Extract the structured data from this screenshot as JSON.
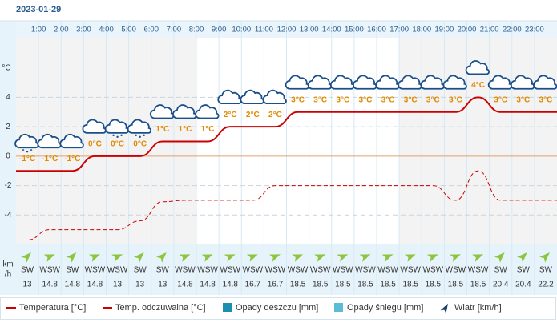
{
  "header": {
    "date": "2023-01-29"
  },
  "chart_data": {
    "type": "line",
    "hour_ticks": [
      "1:00",
      "2:00",
      "3:00",
      "4:00",
      "5:00",
      "6:00",
      "7:00",
      "8:00",
      "9:00",
      "10:00",
      "11:00",
      "12:00",
      "13:00",
      "14:00",
      "15:00",
      "16:00",
      "17:00",
      "18:00",
      "19:00",
      "20:00",
      "21:00",
      "22:00",
      "23:00"
    ],
    "y_label": "°C",
    "ylim": [
      -6,
      8
    ],
    "yticks": [
      -4,
      -2,
      0,
      2,
      4
    ],
    "zero_color": "#e0a070",
    "grid": true,
    "series": [
      {
        "name": "Temperatura [°C]",
        "color": "#cc0000",
        "dashed": false,
        "values": [
          -1,
          -1,
          -1,
          0,
          0,
          0,
          1,
          1,
          1,
          2,
          2,
          2,
          3,
          3,
          3,
          3,
          3,
          3,
          3,
          3,
          4,
          3,
          3,
          3
        ],
        "value_labels": [
          "-1°C",
          "-1°C",
          "-1°C",
          "0°C",
          "0°C",
          "0°C",
          "1°C",
          "1°C",
          "1°C",
          "2°C",
          "2°C",
          "2°C",
          "3°C",
          "3°C",
          "3°C",
          "3°C",
          "3°C",
          "3°C",
          "3°C",
          "3°C",
          "4°C",
          "3°C",
          "3°C",
          "3°C"
        ]
      },
      {
        "name": "Temp. odczuwalna [°C]",
        "color": "#cc0000",
        "dashed": true,
        "values": [
          -5.7,
          -5,
          -5,
          -5,
          -5,
          -4.4,
          -3.1,
          -3,
          -3,
          -3,
          -3,
          -2,
          -2,
          -2,
          -2,
          -2,
          -2,
          -2,
          -2,
          -3,
          -1,
          -3,
          -3,
          -3
        ]
      }
    ],
    "other_legend": [
      {
        "name": "Opady deszczu [mm]",
        "color": "#1a8fb0"
      },
      {
        "name": "Opady śniegu [mm]",
        "color": "#5bbcd6"
      },
      {
        "name": "Wiatr [km/h]",
        "color": "#1a3f6a"
      }
    ],
    "wind_unit": [
      "km",
      "/h"
    ],
    "wind_color": "#8cc63f",
    "wind_directions": [
      "SW",
      "WSW",
      "SW",
      "WSW",
      "WSW",
      "SW",
      "SW",
      "WSW",
      "WSW",
      "WSW",
      "WSW",
      "WSW",
      "WSW",
      "WSW",
      "WSW",
      "WSW",
      "WSW",
      "WSW",
      "WSW",
      "WSW",
      "WSW",
      "SW",
      "SW",
      "SW"
    ],
    "wind_speeds": [
      13,
      14.8,
      14.8,
      14.8,
      13,
      13,
      13,
      14.8,
      14.8,
      14.8,
      16.7,
      16.7,
      18.5,
      18.5,
      18.5,
      18.5,
      18.5,
      18.5,
      18.5,
      18.5,
      18.5,
      20.4,
      20.4,
      22.2
    ]
  }
}
